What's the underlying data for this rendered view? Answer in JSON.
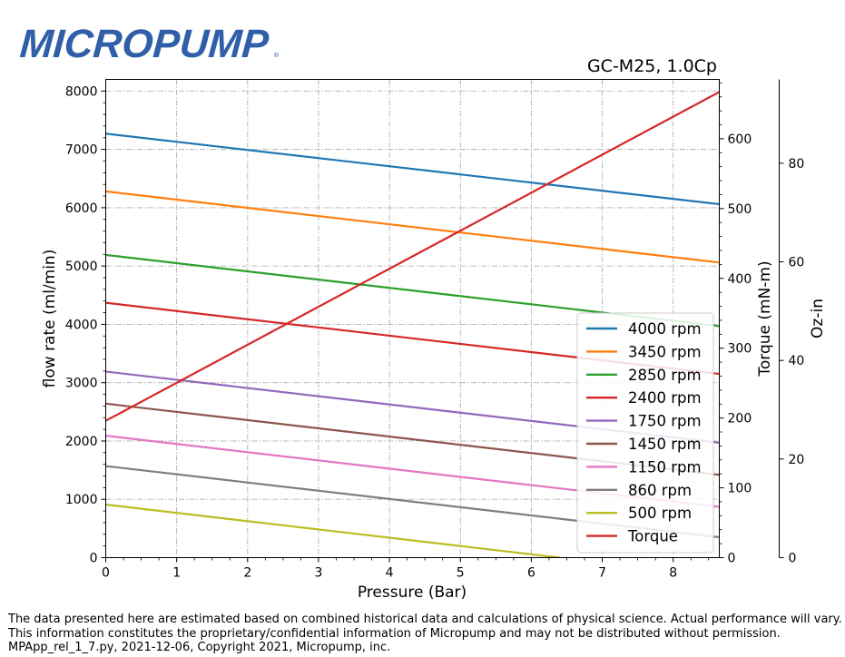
{
  "logo": {
    "text": "MICROPUMP",
    "reg": "®"
  },
  "footer": {
    "line1": "The data presented here are estimated based on combined historical data and calculations of physical science.  Actual performance will vary.",
    "line2": "This information constitutes the proprietary/confidential information of Micropump and may not be distributed without permission.",
    "line3": "MPApp_rel_1_7.py, 2021-12-06, Copyright 2021, Micropump, inc."
  },
  "colors": {
    "4000 rpm": "#1f77b4",
    "3450 rpm": "#ff7f0e",
    "2850 rpm": "#2ca02c",
    "2400 rpm": "#d62728",
    "1750 rpm": "#9467bd",
    "1450 rpm": "#8c564b",
    "1150 rpm": "#e377c2",
    "860 rpm": "#7f7f7f",
    "500 rpm": "#bcbd22",
    "Torque": "#d62728"
  },
  "chart_data": {
    "type": "line",
    "title": "GC-M25,  1.0Cp",
    "xlabel": "Pressure (Bar)",
    "ylabel": "flow rate (ml/min)",
    "ylabel_right": "Torque (mN-m)",
    "ylabel_right2": "Oz-in",
    "xlim": [
      0,
      8.65
    ],
    "ylim": [
      0,
      8200
    ],
    "ylim_right": [
      0,
      685
    ],
    "ylim_right2": [
      0,
      97
    ],
    "xticks": [
      "0",
      "1",
      "2",
      "3",
      "4",
      "5",
      "6",
      "7",
      "8"
    ],
    "yticks": [
      "0",
      "1000",
      "2000",
      "3000",
      "4000",
      "5000",
      "6000",
      "7000",
      "8000"
    ],
    "yticks_right": [
      "0",
      "100",
      "200",
      "300",
      "400",
      "500",
      "600"
    ],
    "yticks_right2": [
      "0",
      "20",
      "40",
      "60",
      "80"
    ],
    "grid": true,
    "legend_position": "right",
    "series": [
      {
        "name": "4000 rpm",
        "axis": "flow",
        "x": [
          0,
          8.65
        ],
        "y": [
          7270,
          6060
        ]
      },
      {
        "name": "3450 rpm",
        "axis": "flow",
        "x": [
          0,
          8.65
        ],
        "y": [
          6280,
          5060
        ]
      },
      {
        "name": "2850 rpm",
        "axis": "flow",
        "x": [
          0,
          8.65
        ],
        "y": [
          5190,
          3970
        ]
      },
      {
        "name": "2400 rpm",
        "axis": "flow",
        "x": [
          0,
          8.65
        ],
        "y": [
          4370,
          3150
        ]
      },
      {
        "name": "1750 rpm",
        "axis": "flow",
        "x": [
          0,
          8.65
        ],
        "y": [
          3190,
          1970
        ]
      },
      {
        "name": "1450 rpm",
        "axis": "flow",
        "x": [
          0,
          8.65
        ],
        "y": [
          2640,
          1420
        ]
      },
      {
        "name": "1150 rpm",
        "axis": "flow",
        "x": [
          0,
          8.65
        ],
        "y": [
          2090,
          870
        ]
      },
      {
        "name": "860 rpm",
        "axis": "flow",
        "x": [
          0,
          8.65
        ],
        "y": [
          1570,
          350
        ]
      },
      {
        "name": "500 rpm",
        "axis": "flow",
        "x": [
          0,
          6.4
        ],
        "y": [
          910,
          0
        ]
      },
      {
        "name": "Torque",
        "axis": "torque",
        "x": [
          0,
          8.65
        ],
        "y": [
          196,
          667
        ]
      }
    ]
  }
}
